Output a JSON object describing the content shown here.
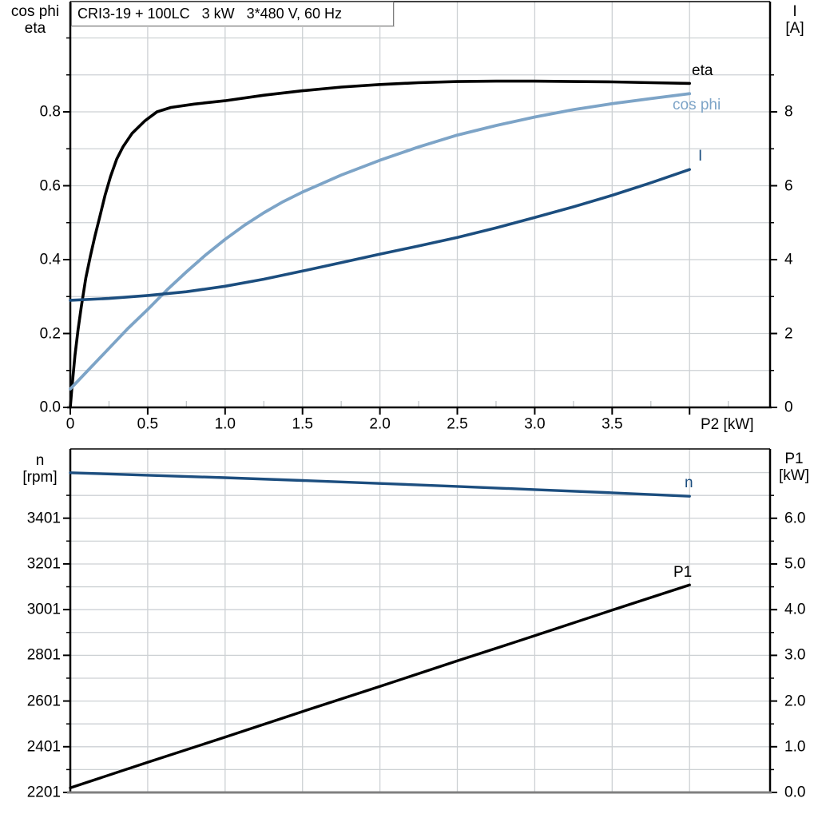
{
  "title": "CRI3-19 + 100LC   3 kW   3*480 V, 60 Hz",
  "colors": {
    "black": "#000000",
    "dark_blue": "#1c4e7f",
    "light_blue": "#7da4c7",
    "grid": "#cdd1d4",
    "minor_tick": "#c2c7ca",
    "axis": "#000000",
    "bottom_border_gray": "#808080"
  },
  "top_chart": {
    "left_axis_title": [
      "cos phi",
      "eta"
    ],
    "right_axis_title": [
      "I",
      "[A]"
    ],
    "x_axis_title": "P2 [kW]",
    "curve_labels": {
      "eta": "eta",
      "cos_phi": "cos phi",
      "current": "I"
    }
  },
  "bottom_chart": {
    "left_axis_title": [
      "n",
      "[rpm]"
    ],
    "right_axis_title": [
      "P1",
      "[kW]"
    ],
    "curve_labels": {
      "n": "n",
      "p1": "P1"
    }
  },
  "chart_data": [
    {
      "type": "line",
      "title": "CRI3-19 + 100LC   3 kW   3*480 V, 60 Hz",
      "x": {
        "label": "P2 [kW]",
        "range": [
          0,
          4.52
        ],
        "ticks": [
          {
            "v": 0,
            "t": "0"
          },
          {
            "v": 0.5,
            "t": "0.5"
          },
          {
            "v": 1,
            "t": "1.0"
          },
          {
            "v": 1.5,
            "t": "1.5"
          },
          {
            "v": 2,
            "t": "2.0"
          },
          {
            "v": 2.5,
            "t": "2.5"
          },
          {
            "v": 3,
            "t": "3.0"
          },
          {
            "v": 3.5,
            "t": "3.5"
          },
          {
            "v": 4,
            "t": ""
          }
        ],
        "minor_ticks": [
          0.25,
          0.75,
          1.25,
          1.75,
          2.25,
          2.75,
          3.25,
          3.75,
          4.25
        ],
        "grid_values": [
          0.5,
          1,
          1.5,
          2,
          2.5,
          3,
          3.5,
          4
        ]
      },
      "y_left": {
        "label": "cos phi / eta",
        "range": [
          0,
          1.0984
        ],
        "ticks": [
          {
            "v": 0,
            "t": "0.0"
          },
          {
            "v": 0.2,
            "t": "0.2"
          },
          {
            "v": 0.4,
            "t": "0.4"
          },
          {
            "v": 0.6,
            "t": "0.6"
          },
          {
            "v": 0.8,
            "t": "0.8"
          }
        ],
        "minor_ticks": [
          0.1,
          0.3,
          0.5,
          0.7,
          0.9,
          1.0
        ],
        "grid_values": [
          0.1,
          0.2,
          0.3,
          0.4,
          0.5,
          0.6,
          0.7,
          0.8,
          0.9,
          1.0
        ]
      },
      "y_right": {
        "label": "I [A]",
        "range": [
          0,
          10.984
        ],
        "ticks": [
          {
            "v": 0,
            "t": "0"
          },
          {
            "v": 2,
            "t": "2"
          },
          {
            "v": 4,
            "t": "4"
          },
          {
            "v": 6,
            "t": "6"
          },
          {
            "v": 8,
            "t": "8"
          }
        ],
        "minor_ticks": [
          1,
          3,
          5,
          7,
          9
        ],
        "grid_values": []
      },
      "series": [
        {
          "name": "eta",
          "axis": "left",
          "color_key": "black",
          "width": 3.6,
          "points": [
            [
              0,
              0
            ],
            [
              0.01,
              0.05
            ],
            [
              0.03,
              0.14
            ],
            [
              0.05,
              0.21
            ],
            [
              0.07,
              0.27
            ],
            [
              0.1,
              0.35
            ],
            [
              0.13,
              0.41
            ],
            [
              0.16,
              0.465
            ],
            [
              0.19,
              0.515
            ],
            [
              0.225,
              0.575
            ],
            [
              0.26,
              0.625
            ],
            [
              0.3,
              0.672
            ],
            [
              0.34,
              0.705
            ],
            [
              0.4,
              0.742
            ],
            [
              0.48,
              0.775
            ],
            [
              0.56,
              0.8
            ],
            [
              0.65,
              0.812
            ],
            [
              0.8,
              0.821
            ],
            [
              1.0,
              0.83
            ],
            [
              1.25,
              0.845
            ],
            [
              1.5,
              0.857
            ],
            [
              1.75,
              0.867
            ],
            [
              2.0,
              0.874
            ],
            [
              2.25,
              0.879
            ],
            [
              2.5,
              0.882
            ],
            [
              2.75,
              0.883
            ],
            [
              3.0,
              0.883
            ],
            [
              3.25,
              0.882
            ],
            [
              3.5,
              0.881
            ],
            [
              3.75,
              0.879
            ],
            [
              4.0,
              0.877
            ]
          ]
        },
        {
          "name": "cos phi",
          "axis": "left",
          "color_key": "light_blue",
          "width": 3.8,
          "points": [
            [
              0,
              0.05
            ],
            [
              0.12,
              0.103
            ],
            [
              0.25,
              0.16
            ],
            [
              0.375,
              0.215
            ],
            [
              0.5,
              0.265
            ],
            [
              0.625,
              0.318
            ],
            [
              0.75,
              0.367
            ],
            [
              0.875,
              0.413
            ],
            [
              1.0,
              0.455
            ],
            [
              1.125,
              0.493
            ],
            [
              1.25,
              0.527
            ],
            [
              1.375,
              0.557
            ],
            [
              1.5,
              0.583
            ],
            [
              1.75,
              0.629
            ],
            [
              2.0,
              0.669
            ],
            [
              2.25,
              0.705
            ],
            [
              2.5,
              0.737
            ],
            [
              2.75,
              0.763
            ],
            [
              3.0,
              0.786
            ],
            [
              3.25,
              0.806
            ],
            [
              3.5,
              0.822
            ],
            [
              3.75,
              0.836
            ],
            [
              4.0,
              0.849
            ]
          ]
        },
        {
          "name": "I",
          "axis": "right",
          "color_key": "dark_blue",
          "width": 3.6,
          "points": [
            [
              0,
              2.9
            ],
            [
              0.25,
              2.95
            ],
            [
              0.5,
              3.03
            ],
            [
              0.75,
              3.13
            ],
            [
              1.0,
              3.28
            ],
            [
              1.25,
              3.47
            ],
            [
              1.5,
              3.69
            ],
            [
              1.75,
              3.92
            ],
            [
              2.0,
              4.15
            ],
            [
              2.25,
              4.37
            ],
            [
              2.5,
              4.6
            ],
            [
              2.75,
              4.86
            ],
            [
              3.0,
              5.14
            ],
            [
              3.25,
              5.43
            ],
            [
              3.5,
              5.74
            ],
            [
              3.75,
              6.08
            ],
            [
              4.0,
              6.44
            ]
          ]
        }
      ]
    },
    {
      "type": "line",
      "x": {
        "label": "",
        "range": [
          0,
          4.52
        ],
        "ticks": [],
        "minor_ticks": [],
        "grid_values": [
          0.5,
          1,
          1.5,
          2,
          2.5,
          3,
          3.5,
          4
        ]
      },
      "y_left": {
        "label": "n [rpm]",
        "range": [
          2201,
          3704
        ],
        "ticks": [
          {
            "v": 2201,
            "t": "2201"
          },
          {
            "v": 2401,
            "t": "2401"
          },
          {
            "v": 2601,
            "t": "2601"
          },
          {
            "v": 2801,
            "t": "2801"
          },
          {
            "v": 3001,
            "t": "3001"
          },
          {
            "v": 3201,
            "t": "3201"
          },
          {
            "v": 3401,
            "t": "3401"
          }
        ],
        "minor_ticks": [
          2301,
          2501,
          2701,
          2901,
          3101,
          3301,
          3501
        ],
        "grid_values": []
      },
      "y_right": {
        "label": "P1 [kW]",
        "range": [
          0,
          7.517
        ],
        "ticks": [
          {
            "v": 0,
            "t": "0.0"
          },
          {
            "v": 1,
            "t": "1.0"
          },
          {
            "v": 2,
            "t": "2.0"
          },
          {
            "v": 3,
            "t": "3.0"
          },
          {
            "v": 4,
            "t": "4.0"
          },
          {
            "v": 5,
            "t": "5.0"
          },
          {
            "v": 6,
            "t": "6.0"
          }
        ],
        "minor_ticks": [
          0.5,
          1.5,
          2.5,
          3.5,
          4.5,
          5.5,
          6.5
        ],
        "grid_values": [
          0.5,
          1,
          1.5,
          2,
          2.5,
          3,
          3.5,
          4,
          4.5,
          5,
          5.5,
          6,
          6.5,
          7
        ]
      },
      "series": [
        {
          "name": "n",
          "axis": "left",
          "color_key": "dark_blue",
          "width": 3.4,
          "points": [
            [
              0,
              3600
            ],
            [
              0.5,
              3589
            ],
            [
              1.0,
              3578
            ],
            [
              1.5,
              3566
            ],
            [
              2.0,
              3553
            ],
            [
              2.5,
              3540
            ],
            [
              3.0,
              3526
            ],
            [
              3.5,
              3512
            ],
            [
              4.0,
              3497
            ]
          ]
        },
        {
          "name": "P1",
          "axis": "right",
          "color_key": "black",
          "width": 3.4,
          "points": [
            [
              0,
              0.1
            ],
            [
              0.5,
              0.66
            ],
            [
              1.0,
              1.21
            ],
            [
              1.5,
              1.77
            ],
            [
              2.0,
              2.32
            ],
            [
              2.5,
              2.88
            ],
            [
              3.0,
              3.43
            ],
            [
              3.5,
              3.99
            ],
            [
              4.0,
              4.54
            ]
          ]
        }
      ]
    }
  ]
}
